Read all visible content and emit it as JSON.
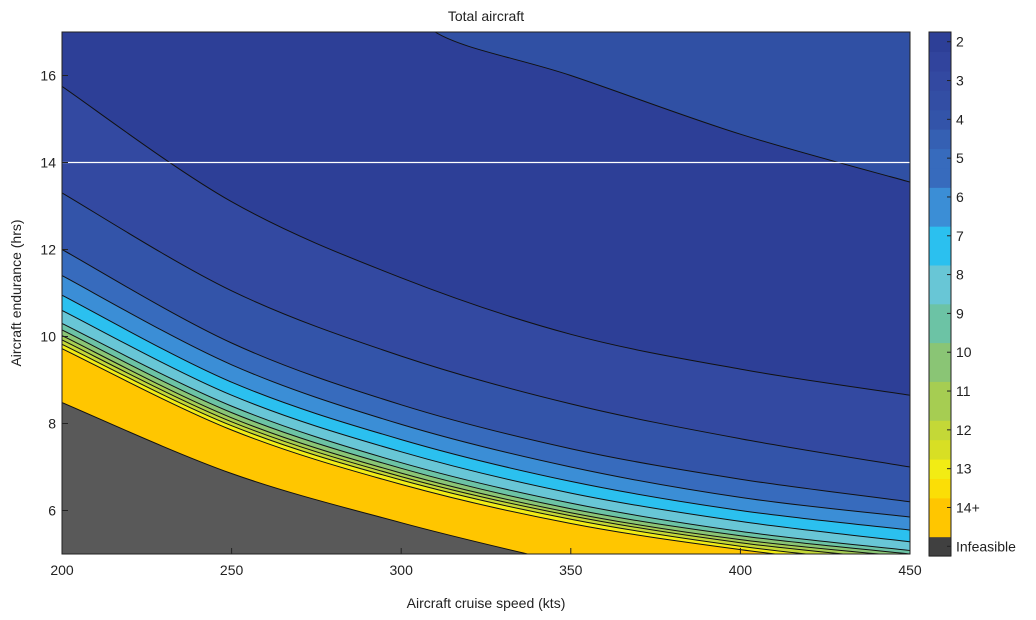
{
  "chart_data": {
    "type": "contour",
    "title": "Total aircraft",
    "xlabel": "Aircraft cruise speed (kts)",
    "ylabel": "Aircraft endurance (hrs)",
    "xlim": [
      200,
      450
    ],
    "ylim": [
      5,
      17
    ],
    "xticks": [
      "200",
      "250",
      "300",
      "350",
      "400",
      "450"
    ],
    "yticks": [
      "6",
      "8",
      "10",
      "12",
      "14",
      "16"
    ],
    "grid": false,
    "reference_line": {
      "orientation": "horizontal",
      "y": 14,
      "color": "#ffffff"
    },
    "colorbar": {
      "placement": "right",
      "levels": [
        {
          "label": "Infeasible",
          "color": "#404040"
        },
        {
          "label": "",
          "color": "#ffc600"
        },
        {
          "label": "14+",
          "color": "#ffc600"
        },
        {
          "label": "",
          "color": "#fbde06"
        },
        {
          "label": "13",
          "color": "#f2ec14"
        },
        {
          "label": "",
          "color": "#d8df24"
        },
        {
          "label": "12",
          "color": "#c4d837"
        },
        {
          "label": "",
          "color": "#a6cd52"
        },
        {
          "label": "11",
          "color": "#a6cd52"
        },
        {
          "label": "",
          "color": "#8ac575"
        },
        {
          "label": "10",
          "color": "#8ac575"
        },
        {
          "label": "",
          "color": "#6cc3a5"
        },
        {
          "label": "9",
          "color": "#6cc3a5"
        },
        {
          "label": "",
          "color": "#68c6d6"
        },
        {
          "label": "8",
          "color": "#68c6d6"
        },
        {
          "label": "",
          "color": "#2bc0ef"
        },
        {
          "label": "7",
          "color": "#2bc0ef"
        },
        {
          "label": "",
          "color": "#3b8ed6"
        },
        {
          "label": "6",
          "color": "#3b8ed6"
        },
        {
          "label": "",
          "color": "#376bbd"
        },
        {
          "label": "5",
          "color": "#376bbd"
        },
        {
          "label": "",
          "color": "#3560b3"
        },
        {
          "label": "4",
          "color": "#3354a9"
        },
        {
          "label": "",
          "color": "#334ea4"
        },
        {
          "label": "3",
          "color": "#3349a1"
        },
        {
          "label": "",
          "color": "#31449d"
        },
        {
          "label": "2",
          "color": "#2d3f97"
        }
      ]
    },
    "contours": [
      {
        "level": "infeasible",
        "color": "#595959",
        "points": [
          [
            200,
            8.48
          ],
          [
            250,
            6.85
          ],
          [
            300,
            5.72
          ],
          [
            340,
            4.95
          ],
          [
            350,
            4.8
          ],
          [
            450,
            4.0
          ]
        ]
      },
      {
        "level": "14+",
        "color": "#ffc600",
        "points": [
          [
            200,
            9.72
          ],
          [
            250,
            7.85
          ],
          [
            300,
            6.6
          ],
          [
            350,
            5.7
          ],
          [
            400,
            5.1
          ],
          [
            450,
            4.65
          ]
        ]
      },
      {
        "level": "13",
        "color": "#f2ec14",
        "points": [
          [
            200,
            9.82
          ],
          [
            250,
            7.95
          ],
          [
            300,
            6.7
          ],
          [
            350,
            5.8
          ],
          [
            400,
            5.18
          ],
          [
            450,
            4.75
          ]
        ]
      },
      {
        "level": "12",
        "color": "#c4d837",
        "points": [
          [
            200,
            9.92
          ],
          [
            250,
            8.04
          ],
          [
            300,
            6.78
          ],
          [
            350,
            5.88
          ],
          [
            400,
            5.26
          ],
          [
            450,
            4.85
          ]
        ]
      },
      {
        "level": "11",
        "color": "#a6cd52",
        "points": [
          [
            200,
            10.02
          ],
          [
            250,
            8.13
          ],
          [
            300,
            6.86
          ],
          [
            350,
            5.95
          ],
          [
            400,
            5.33
          ],
          [
            450,
            4.93
          ]
        ]
      },
      {
        "level": "10",
        "color": "#8ac575",
        "points": [
          [
            200,
            10.15
          ],
          [
            250,
            8.25
          ],
          [
            300,
            6.97
          ],
          [
            350,
            6.04
          ],
          [
            400,
            5.42
          ],
          [
            450,
            5.0
          ]
        ]
      },
      {
        "level": "9",
        "color": "#6cc3a5",
        "points": [
          [
            200,
            10.3
          ],
          [
            250,
            8.4
          ],
          [
            300,
            7.1
          ],
          [
            350,
            6.17
          ],
          [
            400,
            5.52
          ],
          [
            450,
            5.08
          ]
        ]
      },
      {
        "level": "8",
        "color": "#68c6d6",
        "points": [
          [
            200,
            10.6
          ],
          [
            250,
            8.65
          ],
          [
            300,
            7.35
          ],
          [
            350,
            6.4
          ],
          [
            400,
            5.75
          ],
          [
            450,
            5.28
          ]
        ]
      },
      {
        "level": "7",
        "color": "#2bc0ef",
        "points": [
          [
            200,
            10.95
          ],
          [
            250,
            8.95
          ],
          [
            300,
            7.63
          ],
          [
            350,
            6.67
          ],
          [
            400,
            6.0
          ],
          [
            450,
            5.55
          ]
        ]
      },
      {
        "level": "6",
        "color": "#3b8ed6",
        "points": [
          [
            200,
            11.4
          ],
          [
            250,
            9.35
          ],
          [
            300,
            7.98
          ],
          [
            350,
            7.0
          ],
          [
            400,
            6.3
          ],
          [
            450,
            5.85
          ]
        ]
      },
      {
        "level": "5",
        "color": "#376bbd",
        "points": [
          [
            200,
            12.0
          ],
          [
            250,
            9.85
          ],
          [
            300,
            8.43
          ],
          [
            350,
            7.42
          ],
          [
            400,
            6.72
          ],
          [
            450,
            6.2
          ]
        ]
      },
      {
        "level": "4",
        "color": "#3354a9",
        "points": [
          [
            200,
            13.3
          ],
          [
            250,
            11.05
          ],
          [
            300,
            9.55
          ],
          [
            350,
            8.45
          ],
          [
            400,
            7.65
          ],
          [
            450,
            7.0
          ]
        ]
      },
      {
        "level": "3",
        "color": "#3349a1",
        "points": [
          [
            200,
            15.75
          ],
          [
            250,
            13.1
          ],
          [
            300,
            11.35
          ],
          [
            350,
            10.05
          ],
          [
            400,
            9.25
          ],
          [
            450,
            8.65
          ]
        ]
      },
      {
        "level": "2",
        "color": "#2d3f97",
        "points": [
          [
            300,
            18.4
          ],
          [
            310,
            17.0
          ],
          [
            350,
            16.0
          ],
          [
            400,
            14.65
          ],
          [
            450,
            13.55
          ]
        ]
      }
    ]
  },
  "colors": {
    "field_base": "#3050a4",
    "contour_line": "#111111",
    "axis": "#222222"
  }
}
